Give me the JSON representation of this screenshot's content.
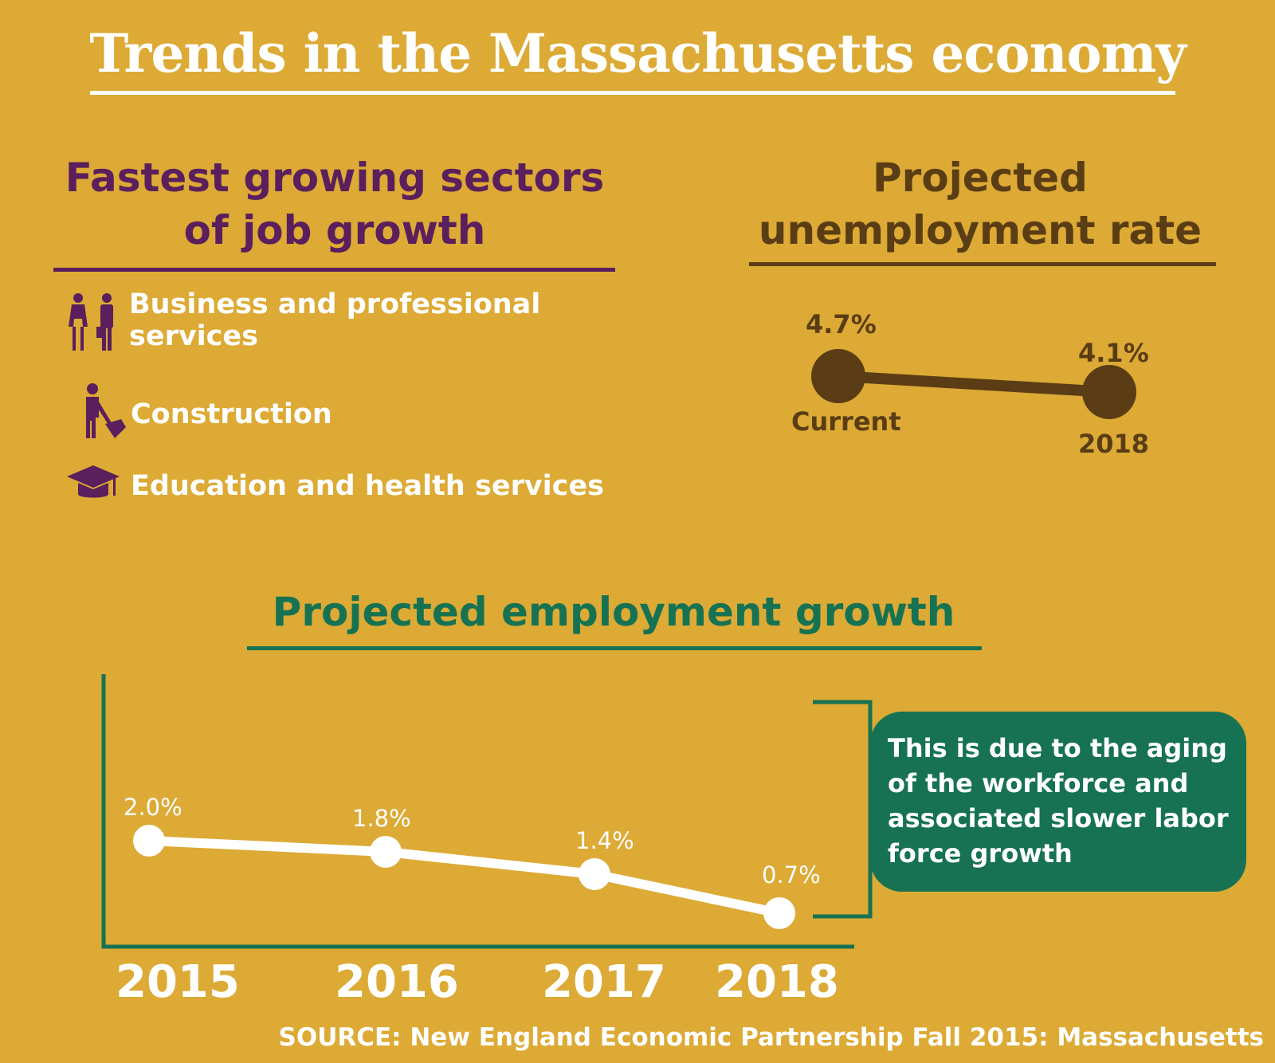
{
  "title": "Trends in the Massachusetts economy",
  "colors": {
    "background": "#dcaa35",
    "purple": "#5a1f5c",
    "brown": "#5a3d14",
    "green": "#167253",
    "white": "#ffffff"
  },
  "sectors": {
    "heading_line1": "Fastest growing sectors",
    "heading_line2": "of job growth",
    "items": [
      {
        "icon": "business-people-icon",
        "label_line1": "Business and professional",
        "label_line2": "services"
      },
      {
        "icon": "construction-worker-icon",
        "label": "Construction"
      },
      {
        "icon": "graduation-cap-icon",
        "label": "Education and health services"
      }
    ]
  },
  "unemployment": {
    "heading_line1": "Projected",
    "heading_line2": "unemployment rate"
  },
  "employment": {
    "heading": "Projected employment growth",
    "note": "This is due to the aging of the workforce and associated slower labor force growth"
  },
  "source": "SOURCE: New England Economic Partnership Fall 2015: Massachusetts",
  "chart_data": [
    {
      "type": "line",
      "title": "Projected unemployment rate",
      "categories": [
        "Current",
        "2018"
      ],
      "values": [
        4.7,
        4.1
      ],
      "value_labels": [
        "4.7%",
        "4.1%"
      ],
      "unit": "%",
      "grid": false
    },
    {
      "type": "line",
      "title": "Projected employment growth",
      "categories": [
        "2015",
        "2016",
        "2017",
        "2018"
      ],
      "values": [
        2.0,
        1.8,
        1.4,
        0.7
      ],
      "value_labels": [
        "2.0%",
        "1.8%",
        "1.4%",
        "0.7%"
      ],
      "unit": "%",
      "grid": false
    }
  ]
}
